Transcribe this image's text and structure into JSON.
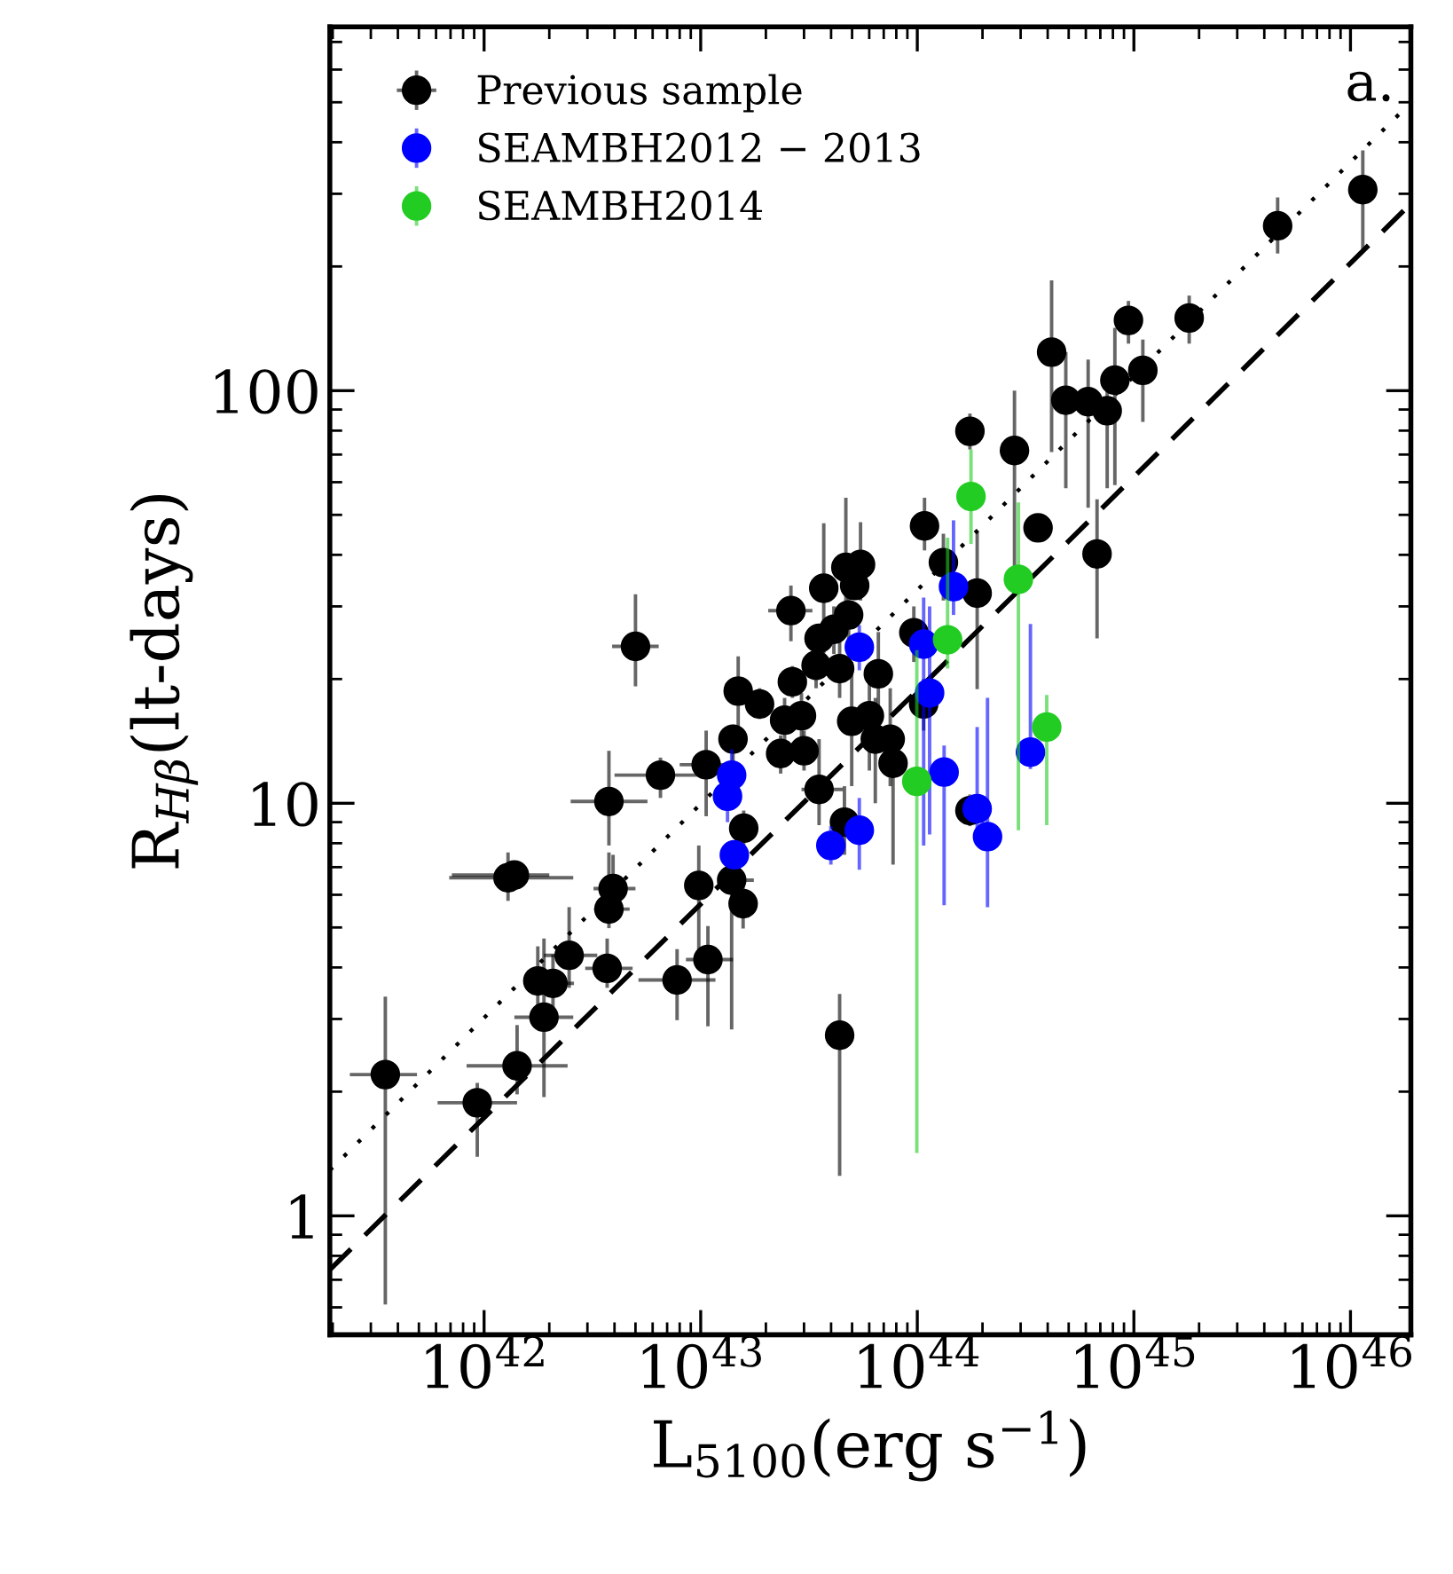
{
  "chart_data": {
    "type": "scatter",
    "xlabel": "L$_{5100}$(erg s$^{−1}$)",
    "ylabel": "R$_{Hβ}$(lt-days)",
    "annotations": [
      "a."
    ],
    "log": "xy",
    "xlim": [
      1.94e+41,
      1.9e+46
    ],
    "ylim": [
      0.515,
      762
    ],
    "xticks": [
      {
        "value": 1e+42,
        "label": "10$^{42}$"
      },
      {
        "value": 1e+43,
        "label": "10$^{43}$"
      },
      {
        "value": 1e+44,
        "label": "10$^{44}$"
      },
      {
        "value": 1e+45,
        "label": "10$^{45}$"
      },
      {
        "value": 1e+46,
        "label": "10$^{46}$"
      }
    ],
    "yticks": [
      1,
      10,
      100
    ],
    "grid": false,
    "legend": "top left",
    "marker": "circle",
    "series": [
      {
        "type": "line",
        "marker": "none",
        "line_style": "dotted",
        "color": "#000000",
        "x": [
          1.94e+41,
          1.9e+46
        ],
        "values": [
          1.29,
          499
        ]
      },
      {
        "type": "line",
        "marker": "none",
        "line_style": "dashed",
        "color": "#000000",
        "x": [
          1.94e+41,
          1.9e+46
        ],
        "values": [
          0.74,
          284
        ]
      },
      {
        "name": "Previous sample",
        "color": "#000000",
        "x": [
          3.5e+41,
          9.3e+41,
          1.42e+42,
          1.89e+42,
          1.77e+42,
          2.08e+42,
          2.47e+42,
          3.7e+42,
          3.77e+42,
          3.94e+42,
          3.77e+42,
          6.52e+42,
          1.29e+42,
          1.38e+42,
          5e+42,
          7.78e+42,
          1.08e+43,
          9.8e+42,
          1.39e+43,
          1.57e+43,
          1.58e+43,
          1.06e+43,
          1.41e+43,
          1.49e+43,
          1.87e+43,
          2.44e+43,
          2.92e+43,
          2.34e+43,
          3e+43,
          2.61e+43,
          2.65e+43,
          3.52e+43,
          3.7e+43,
          4.38e+43,
          4.61e+43,
          4.68e+43,
          5.47e+43,
          5.14e+43,
          4.82e+43,
          3.52e+43,
          4.38e+43,
          3.41e+43,
          4.12e+43,
          4.98e+43,
          6.01e+43,
          6.4e+43,
          6.61e+43,
          7.5e+43,
          7.73e+43,
          1.08e+44,
          3.61e+44,
          1.32e+44,
          6.76e+44,
          1.89e+44,
          9.64e+43,
          1.07e+44,
          1.75e+44,
          1.75e+44,
          2.81e+44,
          1.14e+46,
          4.61e+45,
          1.8e+45,
          9.44e+44,
          1.1e+45,
          8.17e+44,
          4.17e+44,
          4.85e+44,
          6.15e+44,
          7.53e+44
        ],
        "values": [
          2.2,
          1.88,
          2.31,
          3.03,
          3.71,
          3.66,
          4.28,
          3.98,
          5.54,
          6.21,
          10.1,
          11.7,
          6.6,
          6.7,
          24.0,
          3.73,
          4.18,
          6.32,
          6.51,
          5.71,
          8.7,
          12.4,
          14.3,
          18.7,
          17.4,
          15.9,
          16.3,
          13.2,
          13.4,
          29.3,
          19.7,
          10.8,
          33.2,
          2.74,
          9.0,
          37.3,
          37.9,
          33.7,
          28.6,
          25.1,
          21.2,
          21.6,
          26.4,
          15.8,
          16.3,
          14.3,
          20.6,
          14.3,
          12.5,
          47.0,
          46.5,
          38.3,
          40.2,
          32.3,
          25.9,
          17.4,
          9.6,
          79.7,
          71.6,
          307,
          251,
          150,
          148,
          112,
          106,
          124,
          94.8,
          94,
          89.4
        ],
        "errors": [
          [
            0.61,
            3.4
          ],
          [
            1.39,
            2.1
          ],
          [
            1.97,
            2.9
          ],
          [
            1.94,
            4.7
          ],
          [
            3.1,
            4.5
          ],
          [
            3.1,
            4.3
          ],
          [
            3.57,
            5.6
          ],
          [
            3.57,
            4.7
          ],
          [
            4.98,
            7.6
          ],
          [
            5.2,
            7.5
          ],
          [
            7.9,
            13.4
          ],
          [
            10.3,
            12.9
          ],
          [
            5.8,
            7.6
          ],
          null,
          [
            19.2,
            32.1
          ],
          [
            2.98,
            4.43
          ],
          [
            2.88,
            5.04
          ],
          [
            4.35,
            7.9
          ],
          [
            2.83,
            7.14
          ],
          [
            4.97,
            6.47
          ],
          [
            7.9,
            9.6
          ],
          [
            9.3,
            15.0
          ],
          [
            12.5,
            15.5
          ],
          [
            15.3,
            22.7
          ],
          [
            16,
            19
          ],
          [
            14,
            18
          ],
          [
            14.5,
            18.5
          ],
          [
            11.8,
            14.6
          ],
          [
            12,
            15
          ],
          [
            24.7,
            33.7
          ],
          [
            18,
            21.5
          ],
          [
            8.85,
            14.3
          ],
          [
            23.1,
            47.7
          ],
          [
            1.25,
            3.45
          ],
          [
            7.5,
            11
          ],
          [
            30,
            55
          ],
          [
            31,
            48
          ],
          null,
          [
            25,
            33
          ],
          null,
          [
            18,
            25
          ],
          [
            19,
            24
          ],
          [
            23,
            30
          ],
          [
            11,
            22
          ],
          [
            12,
            20
          ],
          [
            10,
            18
          ],
          [
            16,
            26
          ],
          [
            11,
            19
          ],
          [
            7.1,
            12.5
          ],
          [
            41,
            55
          ],
          [
            43,
            50
          ],
          [
            31,
            45
          ],
          [
            25.1,
            54.5
          ],
          [
            18.9,
            45.4
          ],
          [
            22,
            30
          ],
          [
            15,
            20
          ],
          [
            8.8,
            10.5
          ],
          [
            72,
            88
          ],
          [
            32,
            100
          ],
          [
            218,
            382
          ],
          [
            215,
            294
          ],
          [
            130,
            170
          ],
          [
            130,
            165
          ],
          [
            84,
            133
          ],
          [
            59,
            142
          ],
          [
            71,
            185
          ],
          [
            58,
            124
          ],
          [
            52,
            119
          ],
          [
            58,
            110
          ]
        ],
        "xerrors": [
          [
            2.4e+41,
            4.9e+41
          ],
          [
            6.1e+41,
            1.42e+42
          ],
          [
            8.3e+41,
            2.43e+42
          ],
          [
            1.38e+42,
            2.58e+42
          ],
          [
            1.61e+42,
            2.35e+42
          ],
          [
            2.08e+42,
            2.6e+42
          ],
          [
            1.89e+42,
            3.33e+42
          ],
          [
            2.93e+42,
            4.85e+42
          ],
          [
            3.22e+42,
            4.7e+42
          ],
          [
            3.2e+42,
            5e+42
          ],
          [
            2.51e+42,
            5.68e+42
          ],
          [
            4e+42,
            1.03e+43
          ],
          [
            6.9e+41,
            2.58e+42
          ],
          [
            7.1e+41,
            2e+42
          ],
          [
            3.9e+42,
            6.4e+42
          ],
          [
            5.16e+42,
            1.17e+43
          ],
          [
            8.55e+42,
            1.41e+43
          ],
          null,
          [
            1.21e+43,
            1.76e+43
          ],
          [
            1.4e+43,
            1.81e+43
          ],
          null,
          [
            8e+42,
            1.41e+43
          ],
          [
            1.25e+43,
            1.6e+43
          ],
          [
            1.3e+43,
            1.7e+43
          ],
          [
            1.65e+43,
            2.1e+43
          ],
          null,
          null,
          null,
          null,
          [
            2.05e+43,
            3.28e+43
          ],
          null,
          [
            2.92e+43,
            4.53e+43
          ],
          null,
          null,
          null,
          null,
          null,
          null,
          null,
          null,
          null,
          null,
          null,
          null,
          null,
          null,
          null,
          null,
          null,
          null,
          null,
          null,
          null,
          null,
          null,
          null,
          null,
          null,
          null,
          null,
          null,
          null,
          null,
          null,
          null,
          null,
          null,
          null,
          null
        ]
      },
      {
        "name": "SEAMBH2012 − 2013",
        "color": "#0000ff",
        "x": [
          1.39e+43,
          1.33e+43,
          1.43e+43,
          3.99e+43,
          5.4e+43,
          5.4e+43,
          1.07e+44,
          1.14e+44,
          1.47e+44,
          1.33e+44,
          1.89e+44,
          2.11e+44,
          3.33e+44
        ],
        "values": [
          11.7,
          10.4,
          7.5,
          7.9,
          8.6,
          23.9,
          24.3,
          18.5,
          33.5,
          11.9,
          9.7,
          8.3,
          13.3
        ],
        "errors": [
          [
            10,
            13.5
          ],
          [
            9,
            10.4
          ],
          null,
          [
            7.1,
            8.8
          ],
          [
            6.9,
            10.3
          ],
          [
            21,
            27
          ],
          [
            7.9,
            31.5
          ],
          [
            8.4,
            30
          ],
          [
            28.6,
            48.5
          ],
          [
            5.66,
            13.8
          ],
          [
            8.5,
            15.3
          ],
          [
            5.6,
            18
          ],
          [
            12.1,
            27.2
          ]
        ]
      },
      {
        "name": "SEAMBH2014",
        "color": "#22cc22",
        "x": [
          1.77e+44,
          2.93e+44,
          1.38e+44,
          9.95e+43,
          3.96e+44
        ],
        "values": [
          55.4,
          34.9,
          24.9,
          11.3,
          15.3
        ],
        "errors": [
          [
            42.5,
            72
          ],
          [
            8.6,
            53.6
          ],
          [
            21.2,
            44
          ],
          [
            1.42,
            23.5
          ],
          [
            8.85,
            18.3
          ]
        ]
      }
    ]
  }
}
